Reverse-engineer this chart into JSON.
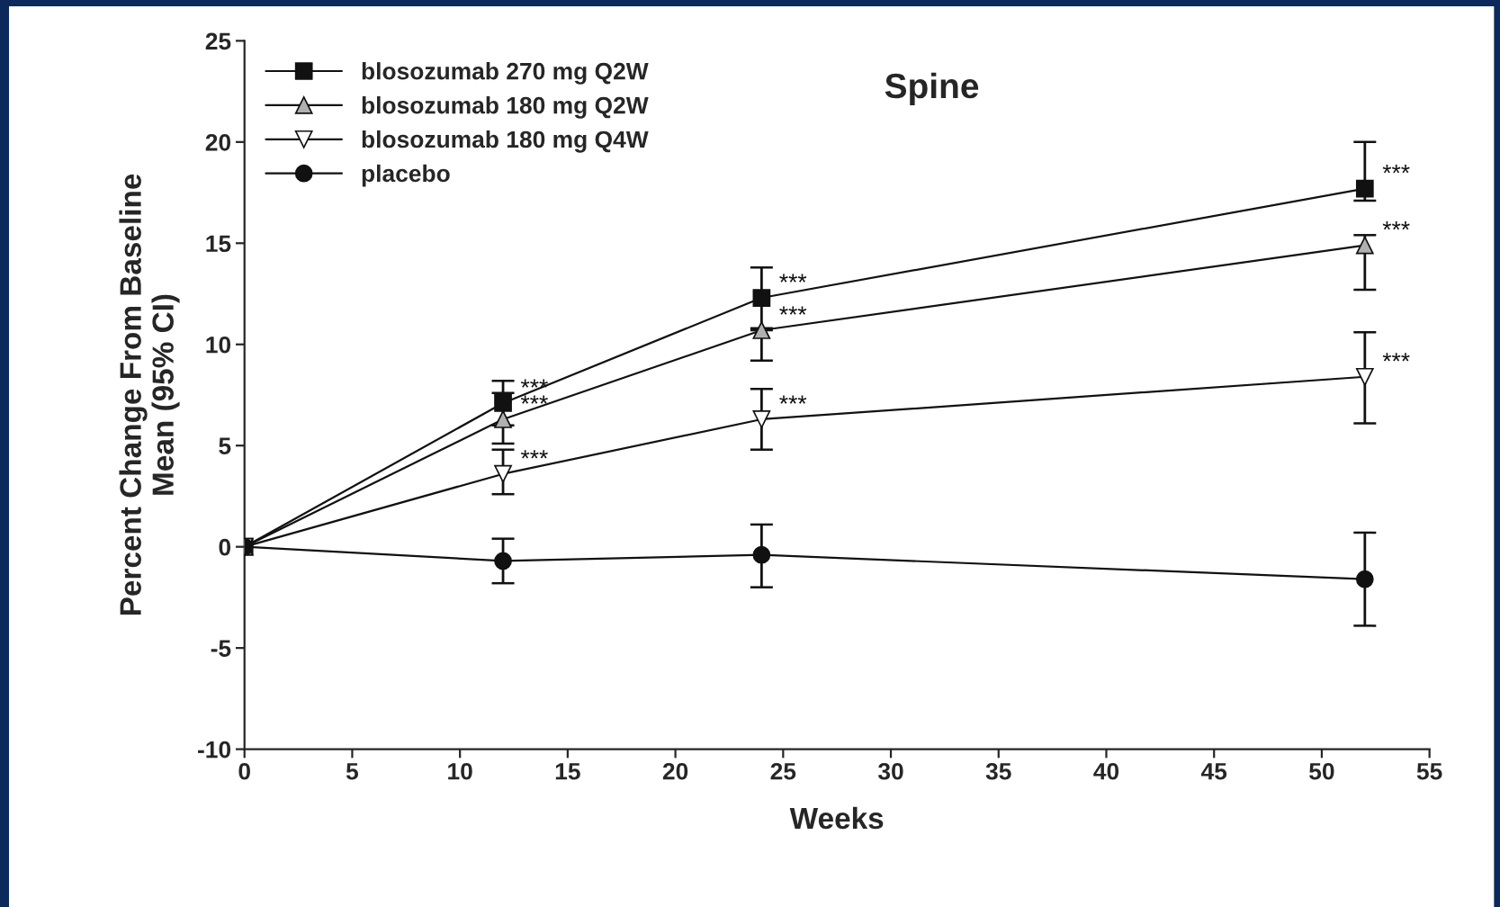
{
  "chart_data": {
    "type": "line",
    "title": "Spine",
    "xlabel": "Weeks",
    "ylabel": "Percent Change From Baseline\nMean (95% CI)",
    "x": [
      0,
      12,
      24,
      52
    ],
    "series": [
      {
        "name": "blosozumab 270 mg Q2W",
        "color": "#111111",
        "marker": "square",
        "values": [
          0,
          7.1,
          12.3,
          17.7
        ],
        "errors": [
          null,
          [
            6.0,
            8.2
          ],
          [
            10.8,
            13.8
          ],
          [
            17.1,
            20.0
          ]
        ]
      },
      {
        "name": "blosozumab 180 mg Q2W",
        "color": "#b0b0b0",
        "marker": "triangle",
        "values": [
          0,
          6.3,
          10.7,
          14.9
        ],
        "errors": [
          null,
          [
            5.1,
            7.6
          ],
          [
            9.2,
            10.7
          ],
          [
            12.7,
            15.4
          ]
        ]
      },
      {
        "name": "blosozumab 180 mg Q4W",
        "color": "#ffffff",
        "marker": "triangle_down",
        "values": [
          0,
          3.6,
          6.3,
          8.4
        ],
        "errors": [
          null,
          [
            2.6,
            4.8
          ],
          [
            4.8,
            7.8
          ],
          [
            6.1,
            10.6
          ]
        ]
      },
      {
        "name": "placebo",
        "color": "#111111",
        "marker": "circle",
        "values": [
          0,
          -0.7,
          -0.4,
          -1.6
        ],
        "errors": [
          null,
          [
            -1.8,
            0.4
          ],
          [
            -2.0,
            1.1
          ],
          [
            -3.9,
            0.7
          ]
        ]
      }
    ],
    "annotations": [
      {
        "text": "***",
        "x": 12,
        "y": 7.1
      },
      {
        "text": "***",
        "x": 12,
        "y": 6.3
      },
      {
        "text": "***",
        "x": 12,
        "y": 3.6
      },
      {
        "text": "***",
        "x": 24,
        "y": 12.3
      },
      {
        "text": "***",
        "x": 24,
        "y": 10.7
      },
      {
        "text": "***",
        "x": 24,
        "y": 6.3
      },
      {
        "text": "***",
        "x": 52,
        "y": 17.7
      },
      {
        "text": "***",
        "x": 52,
        "y": 14.9
      },
      {
        "text": "***",
        "x": 52,
        "y": 8.4
      }
    ],
    "xlim": [
      0,
      55
    ],
    "xticks": [
      0,
      5,
      10,
      15,
      20,
      25,
      30,
      35,
      40,
      45,
      50,
      55
    ],
    "ylim": [
      -10,
      25
    ],
    "yticks": [
      -10,
      -5,
      0,
      5,
      10,
      15,
      20,
      25
    ],
    "grid": false,
    "legend": "top left",
    "line_style": "solid"
  }
}
